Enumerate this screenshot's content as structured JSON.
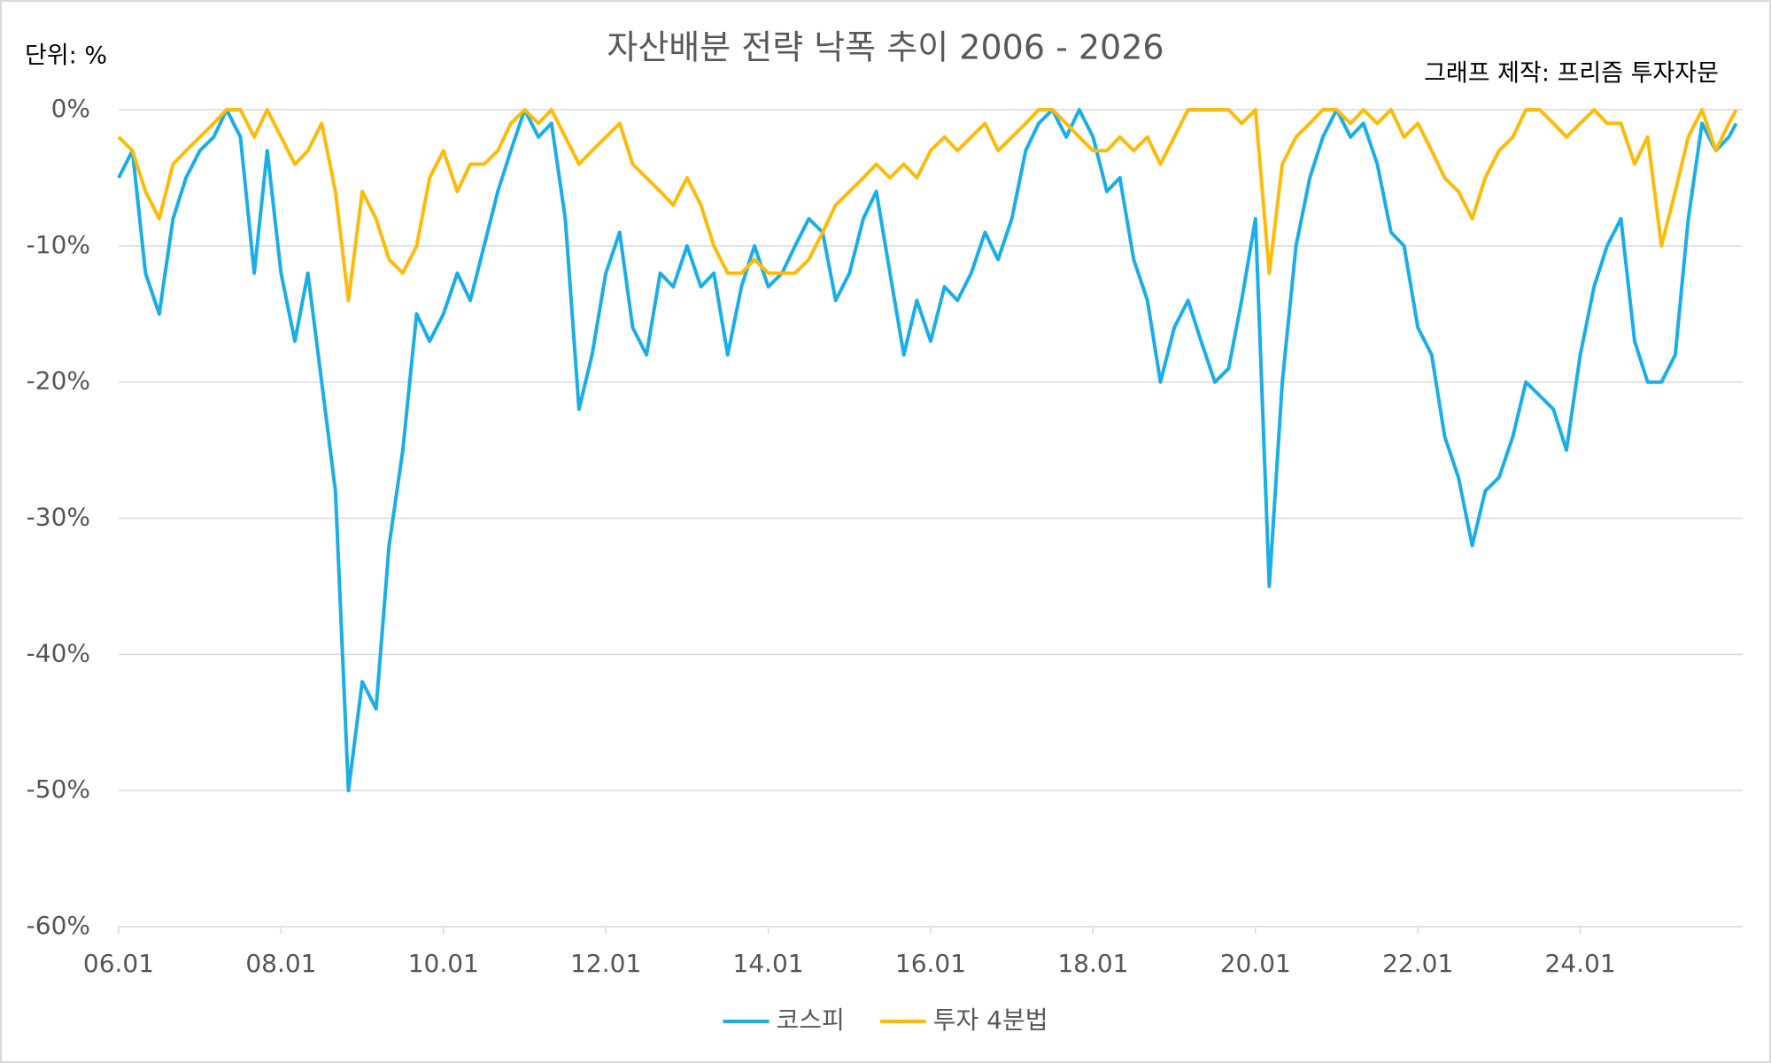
{
  "chart_data": {
    "type": "line",
    "title": "자산배분 전략 낙폭 추이 2006 - 2026",
    "unit_label": "단위: %",
    "credit": "그래프 제작: 프리즘 투자자문",
    "x": [
      2006,
      2006.17,
      2006.33,
      2006.5,
      2006.67,
      2006.83,
      2007,
      2007.17,
      2007.33,
      2007.5,
      2007.67,
      2007.83,
      2008,
      2008.17,
      2008.33,
      2008.5,
      2008.67,
      2008.83,
      2009,
      2009.17,
      2009.33,
      2009.5,
      2009.67,
      2009.83,
      2010,
      2010.17,
      2010.33,
      2010.5,
      2010.67,
      2010.83,
      2011,
      2011.17,
      2011.33,
      2011.5,
      2011.67,
      2011.83,
      2012,
      2012.17,
      2012.33,
      2012.5,
      2012.67,
      2012.83,
      2013,
      2013.17,
      2013.33,
      2013.5,
      2013.67,
      2013.83,
      2014,
      2014.17,
      2014.33,
      2014.5,
      2014.67,
      2014.83,
      2015,
      2015.17,
      2015.33,
      2015.5,
      2015.67,
      2015.83,
      2016,
      2016.17,
      2016.33,
      2016.5,
      2016.67,
      2016.83,
      2017,
      2017.17,
      2017.33,
      2017.5,
      2017.67,
      2017.83,
      2018,
      2018.17,
      2018.33,
      2018.5,
      2018.67,
      2018.83,
      2019,
      2019.17,
      2019.33,
      2019.5,
      2019.67,
      2019.83,
      2020,
      2020.17,
      2020.33,
      2020.5,
      2020.67,
      2020.83,
      2021,
      2021.17,
      2021.33,
      2021.5,
      2021.67,
      2021.83,
      2022,
      2022.17,
      2022.33,
      2022.5,
      2022.67,
      2022.83,
      2023,
      2023.17,
      2023.33,
      2023.5,
      2023.67,
      2023.83,
      2024,
      2024.17,
      2024.33,
      2024.5,
      2024.67,
      2024.83,
      2025,
      2025.17,
      2025.33,
      2025.5,
      2025.67,
      2025.83,
      2025.92
    ],
    "series": [
      {
        "name": "코스피",
        "color": "#1aaee6",
        "values": [
          -5,
          -3,
          -12,
          -15,
          -8,
          -5,
          -3,
          -2,
          0,
          -2,
          -12,
          -3,
          -12,
          -17,
          -12,
          -20,
          -28,
          -50,
          -42,
          -44,
          -32,
          -25,
          -15,
          -17,
          -15,
          -12,
          -14,
          -10,
          -6,
          -3,
          0,
          -2,
          -1,
          -8,
          -22,
          -18,
          -12,
          -9,
          -16,
          -18,
          -12,
          -13,
          -10,
          -13,
          -12,
          -18,
          -13,
          -10,
          -13,
          -12,
          -10,
          -8,
          -9,
          -14,
          -12,
          -8,
          -6,
          -12,
          -18,
          -14,
          -17,
          -13,
          -14,
          -12,
          -9,
          -11,
          -8,
          -3,
          -1,
          0,
          -2,
          0,
          -2,
          -6,
          -5,
          -11,
          -14,
          -20,
          -16,
          -14,
          -17,
          -20,
          -19,
          -14,
          -8,
          -35,
          -20,
          -10,
          -5,
          -2,
          0,
          -2,
          -1,
          -4,
          -9,
          -10,
          -16,
          -18,
          -24,
          -27,
          -32,
          -28,
          -27,
          -24,
          -20,
          -21,
          -22,
          -25,
          -18,
          -13,
          -10,
          -8,
          -17,
          -20,
          -20,
          -18,
          -8,
          -1,
          -3,
          -2,
          -1
        ]
      },
      {
        "name": "투자 4분법",
        "color": "#fdbb09",
        "values": [
          -2,
          -3,
          -6,
          -8,
          -4,
          -3,
          -2,
          -1,
          0,
          0,
          -2,
          0,
          -2,
          -4,
          -3,
          -1,
          -6,
          -14,
          -6,
          -8,
          -11,
          -12,
          -10,
          -5,
          -3,
          -6,
          -4,
          -4,
          -3,
          -1,
          0,
          -1,
          0,
          -2,
          -4,
          -3,
          -2,
          -1,
          -4,
          -5,
          -6,
          -7,
          -5,
          -7,
          -10,
          -12,
          -12,
          -11,
          -12,
          -12,
          -12,
          -11,
          -9,
          -7,
          -6,
          -5,
          -4,
          -5,
          -4,
          -5,
          -3,
          -2,
          -3,
          -2,
          -1,
          -3,
          -2,
          -1,
          0,
          0,
          -1,
          -2,
          -3,
          -3,
          -2,
          -3,
          -2,
          -4,
          -2,
          0,
          0,
          0,
          0,
          -1,
          0,
          -12,
          -4,
          -2,
          -1,
          0,
          0,
          -1,
          0,
          -1,
          0,
          -2,
          -1,
          -3,
          -5,
          -6,
          -8,
          -5,
          -3,
          -2,
          0,
          0,
          -1,
          -2,
          -1,
          0,
          -1,
          -1,
          -4,
          -2,
          -10,
          -6,
          -2,
          0,
          -3,
          -1,
          0
        ]
      }
    ],
    "xlim": [
      2006,
      2026
    ],
    "xticks": [
      {
        "value": 2006,
        "label": "06.01"
      },
      {
        "value": 2008,
        "label": "08.01"
      },
      {
        "value": 2010,
        "label": "10.01"
      },
      {
        "value": 2012,
        "label": "12.01"
      },
      {
        "value": 2014,
        "label": "14.01"
      },
      {
        "value": 2016,
        "label": "16.01"
      },
      {
        "value": 2018,
        "label": "18.01"
      },
      {
        "value": 2020,
        "label": "20.01"
      },
      {
        "value": 2022,
        "label": "22.01"
      },
      {
        "value": 2024,
        "label": "24.01"
      }
    ],
    "ylim": [
      -60,
      0
    ],
    "yticks": [
      {
        "value": 0,
        "label": "0%"
      },
      {
        "value": -10,
        "label": "-10%"
      },
      {
        "value": -20,
        "label": "-20%"
      },
      {
        "value": -30,
        "label": "-30%"
      },
      {
        "value": -40,
        "label": "-40%"
      },
      {
        "value": -50,
        "label": "-50%"
      },
      {
        "value": -60,
        "label": "-60%"
      }
    ],
    "grid": true,
    "legend": "bottom"
  }
}
